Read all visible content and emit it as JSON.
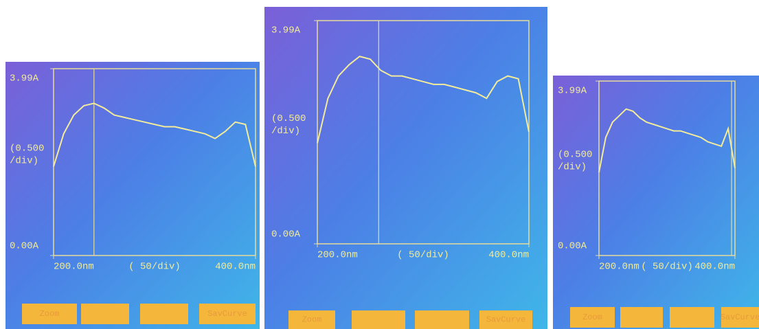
{
  "chart_data": [
    {
      "type": "line",
      "y_unit_label": [
        "(0.500",
        "/div)"
      ],
      "x_unit_label": "( 50/div)",
      "x": [
        200,
        210,
        220,
        230,
        240,
        250,
        260,
        270,
        280,
        290,
        300,
        310,
        320,
        330,
        340,
        350,
        360,
        370,
        380,
        390,
        400
      ],
      "series": [
        {
          "color": "#f3ec9a",
          "values": [
            1.9,
            2.6,
            3.0,
            3.2,
            3.25,
            3.15,
            3.0,
            2.95,
            2.9,
            2.85,
            2.8,
            2.75,
            2.75,
            2.7,
            2.65,
            2.6,
            2.5,
            2.65,
            2.85,
            2.8,
            1.9
          ]
        }
      ],
      "xlim": [
        200,
        400
      ],
      "ylim": [
        0,
        3.99
      ],
      "xticks": [
        {
          "value": 200,
          "label": "200.0nm"
        },
        {
          "value": 400,
          "label": "400.0nm"
        }
      ],
      "yticks": [
        {
          "value": 0,
          "label": "0.00A"
        },
        {
          "value": 3.99,
          "label": "3.99A"
        }
      ],
      "cursor": 240,
      "buttons": [
        "Zoom",
        "SavCurve"
      ]
    },
    {
      "type": "line",
      "y_unit_label": [
        "(0.500",
        "/div)"
      ],
      "x_unit_label": "( 50/div)",
      "x": [
        200,
        210,
        220,
        230,
        240,
        250,
        260,
        270,
        280,
        290,
        300,
        310,
        320,
        330,
        340,
        350,
        360,
        370,
        380,
        390,
        400
      ],
      "series": [
        {
          "color": "#f3ec9a",
          "values": [
            1.8,
            2.6,
            3.0,
            3.2,
            3.35,
            3.3,
            3.1,
            3.0,
            3.0,
            2.95,
            2.9,
            2.85,
            2.85,
            2.8,
            2.75,
            2.7,
            2.6,
            2.9,
            3.0,
            2.95,
            2.0
          ]
        }
      ],
      "xlim": [
        200,
        400
      ],
      "ylim": [
        0,
        3.99
      ],
      "xticks": [
        {
          "value": 200,
          "label": "200.0nm"
        },
        {
          "value": 400,
          "label": "400.0nm"
        }
      ],
      "yticks": [
        {
          "value": 0,
          "label": "0.00A"
        },
        {
          "value": 3.99,
          "label": "3.99A"
        }
      ],
      "cursor": 258,
      "buttons": [
        "Zoom",
        "SavCurve"
      ]
    },
    {
      "type": "line",
      "y_unit_label": [
        "(0.500",
        "/div)"
      ],
      "x_unit_label": "( 50/div)",
      "x": [
        200,
        210,
        220,
        230,
        240,
        250,
        260,
        270,
        280,
        290,
        300,
        310,
        320,
        330,
        340,
        350,
        360,
        370,
        380,
        390,
        400
      ],
      "series": [
        {
          "color": "#f3ec9a",
          "values": [
            1.9,
            2.7,
            3.05,
            3.2,
            3.35,
            3.3,
            3.15,
            3.05,
            3.0,
            2.95,
            2.9,
            2.85,
            2.85,
            2.8,
            2.75,
            2.7,
            2.6,
            2.55,
            2.5,
            2.9,
            2.0
          ]
        }
      ],
      "xlim": [
        200,
        400
      ],
      "ylim": [
        0,
        3.99
      ],
      "xticks": [
        {
          "value": 200,
          "label": "200.0nm"
        },
        {
          "value": 400,
          "label": "400.0nm"
        }
      ],
      "yticks": [
        {
          "value": 0,
          "label": "0.00A"
        },
        {
          "value": 3.99,
          "label": "3.99A"
        }
      ],
      "cursor": 395,
      "buttons": [
        "Zoom",
        "SavCurve"
      ]
    }
  ]
}
